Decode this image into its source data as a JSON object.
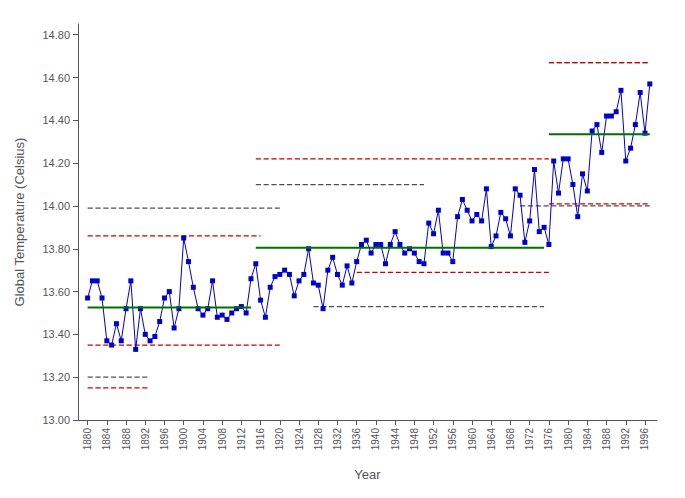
{
  "chart_data": {
    "type": "line",
    "xlabel": "Year",
    "ylabel": "Global Temperature (Celsius)",
    "x": [
      1880,
      1881,
      1882,
      1883,
      1884,
      1885,
      1886,
      1887,
      1888,
      1889,
      1890,
      1891,
      1892,
      1893,
      1894,
      1895,
      1896,
      1897,
      1898,
      1899,
      1900,
      1901,
      1902,
      1903,
      1904,
      1905,
      1906,
      1907,
      1908,
      1909,
      1910,
      1911,
      1912,
      1913,
      1914,
      1915,
      1916,
      1917,
      1918,
      1919,
      1920,
      1921,
      1922,
      1923,
      1924,
      1925,
      1926,
      1927,
      1928,
      1929,
      1930,
      1931,
      1932,
      1933,
      1934,
      1935,
      1936,
      1937,
      1938,
      1939,
      1940,
      1941,
      1942,
      1943,
      1944,
      1945,
      1946,
      1947,
      1948,
      1949,
      1950,
      1951,
      1952,
      1953,
      1954,
      1955,
      1956,
      1957,
      1958,
      1959,
      1960,
      1961,
      1962,
      1963,
      1964,
      1965,
      1966,
      1967,
      1968,
      1969,
      1970,
      1971,
      1972,
      1973,
      1974,
      1975,
      1976,
      1977,
      1978,
      1979,
      1980,
      1981,
      1982,
      1983,
      1984,
      1985,
      1986,
      1987,
      1988,
      1989,
      1990,
      1991,
      1992,
      1993,
      1994,
      1995,
      1996,
      1997
    ],
    "values": [
      13.57,
      13.65,
      13.65,
      13.57,
      13.37,
      13.35,
      13.45,
      13.37,
      13.52,
      13.65,
      13.33,
      13.52,
      13.4,
      13.37,
      13.39,
      13.46,
      13.57,
      13.6,
      13.43,
      13.52,
      13.85,
      13.74,
      13.62,
      13.52,
      13.49,
      13.52,
      13.65,
      13.48,
      13.49,
      13.47,
      13.5,
      13.52,
      13.53,
      13.5,
      13.66,
      13.73,
      13.56,
      13.48,
      13.62,
      13.67,
      13.68,
      13.7,
      13.68,
      13.58,
      13.65,
      13.68,
      13.8,
      13.64,
      13.63,
      13.52,
      13.7,
      13.76,
      13.68,
      13.63,
      13.72,
      13.64,
      13.74,
      13.82,
      13.84,
      13.78,
      13.82,
      13.82,
      13.73,
      13.82,
      13.88,
      13.82,
      13.78,
      13.8,
      13.78,
      13.74,
      13.73,
      13.92,
      13.87,
      13.98,
      13.78,
      13.78,
      13.74,
      13.95,
      14.03,
      13.98,
      13.93,
      13.96,
      13.93,
      14.08,
      13.81,
      13.86,
      13.97,
      13.94,
      13.86,
      14.08,
      14.05,
      13.83,
      13.93,
      14.17,
      13.88,
      13.9,
      13.82,
      14.21,
      14.06,
      14.22,
      14.22,
      14.1,
      13.95,
      14.15,
      14.07,
      14.35,
      14.38,
      14.25,
      14.42,
      14.42,
      14.44,
      14.54,
      14.21,
      14.27,
      14.38,
      14.53,
      14.34,
      14.57
    ],
    "color": "#0000CC",
    "marker": "square",
    "reference_lines": [
      {
        "color": "#007000",
        "line_style": "solid",
        "segments": [
          {
            "y": 13.525,
            "x0": 1880,
            "x1": 1914
          },
          {
            "y": 13.805,
            "x0": 1915,
            "x1": 1975
          },
          {
            "y": 14.335,
            "x0": 1976,
            "x1": 1997
          }
        ]
      },
      {
        "color": "#505050",
        "line_style": "dashed",
        "segments": [
          {
            "y": 13.99,
            "x0": 1880,
            "x1": 1920
          },
          {
            "y": 13.2,
            "x0": 1880,
            "x1": 1893
          },
          {
            "y": 14.1,
            "x0": 1915,
            "x1": 1950
          },
          {
            "y": 13.53,
            "x0": 1927,
            "x1": 1975
          },
          {
            "y": 14.67,
            "x0": 1976,
            "x1": 1997
          },
          {
            "y": 14.0,
            "x0": 1970,
            "x1": 1997
          }
        ]
      },
      {
        "color": "#CC0000",
        "line_style": "dashed",
        "segments": [
          {
            "y": 13.86,
            "x0": 1880,
            "x1": 1916
          },
          {
            "y": 13.15,
            "x0": 1880,
            "x1": 1893
          },
          {
            "y": 13.35,
            "x0": 1880,
            "x1": 1920
          },
          {
            "y": 14.22,
            "x0": 1915,
            "x1": 1976
          },
          {
            "y": 13.69,
            "x0": 1936,
            "x1": 1976
          },
          {
            "y": 14.67,
            "x0": 1976,
            "x1": 1997
          },
          {
            "y": 14.01,
            "x0": 1976,
            "x1": 1997
          }
        ]
      }
    ],
    "xlim": [
      1878,
      1998.5
    ],
    "xticks": [
      1880,
      1884,
      1888,
      1892,
      1896,
      1900,
      1904,
      1908,
      1912,
      1916,
      1920,
      1924,
      1928,
      1932,
      1936,
      1940,
      1944,
      1948,
      1952,
      1956,
      1960,
      1964,
      1968,
      1972,
      1976,
      1980,
      1984,
      1988,
      1992,
      1996
    ],
    "ylim": [
      13.0,
      14.85
    ],
    "yticks": [
      {
        "value": 13.0,
        "label": "13.00"
      },
      {
        "value": 13.2,
        "label": "13.20"
      },
      {
        "value": 13.4,
        "label": "13.40"
      },
      {
        "value": 13.6,
        "label": "13.60"
      },
      {
        "value": 13.8,
        "label": "13.80"
      },
      {
        "value": 14.0,
        "label": "14.00"
      },
      {
        "value": 14.2,
        "label": "14.20"
      },
      {
        "value": 14.4,
        "label": "14.40"
      },
      {
        "value": 14.6,
        "label": "14.60"
      },
      {
        "value": 14.8,
        "label": "14.80"
      }
    ],
    "grid": false
  }
}
